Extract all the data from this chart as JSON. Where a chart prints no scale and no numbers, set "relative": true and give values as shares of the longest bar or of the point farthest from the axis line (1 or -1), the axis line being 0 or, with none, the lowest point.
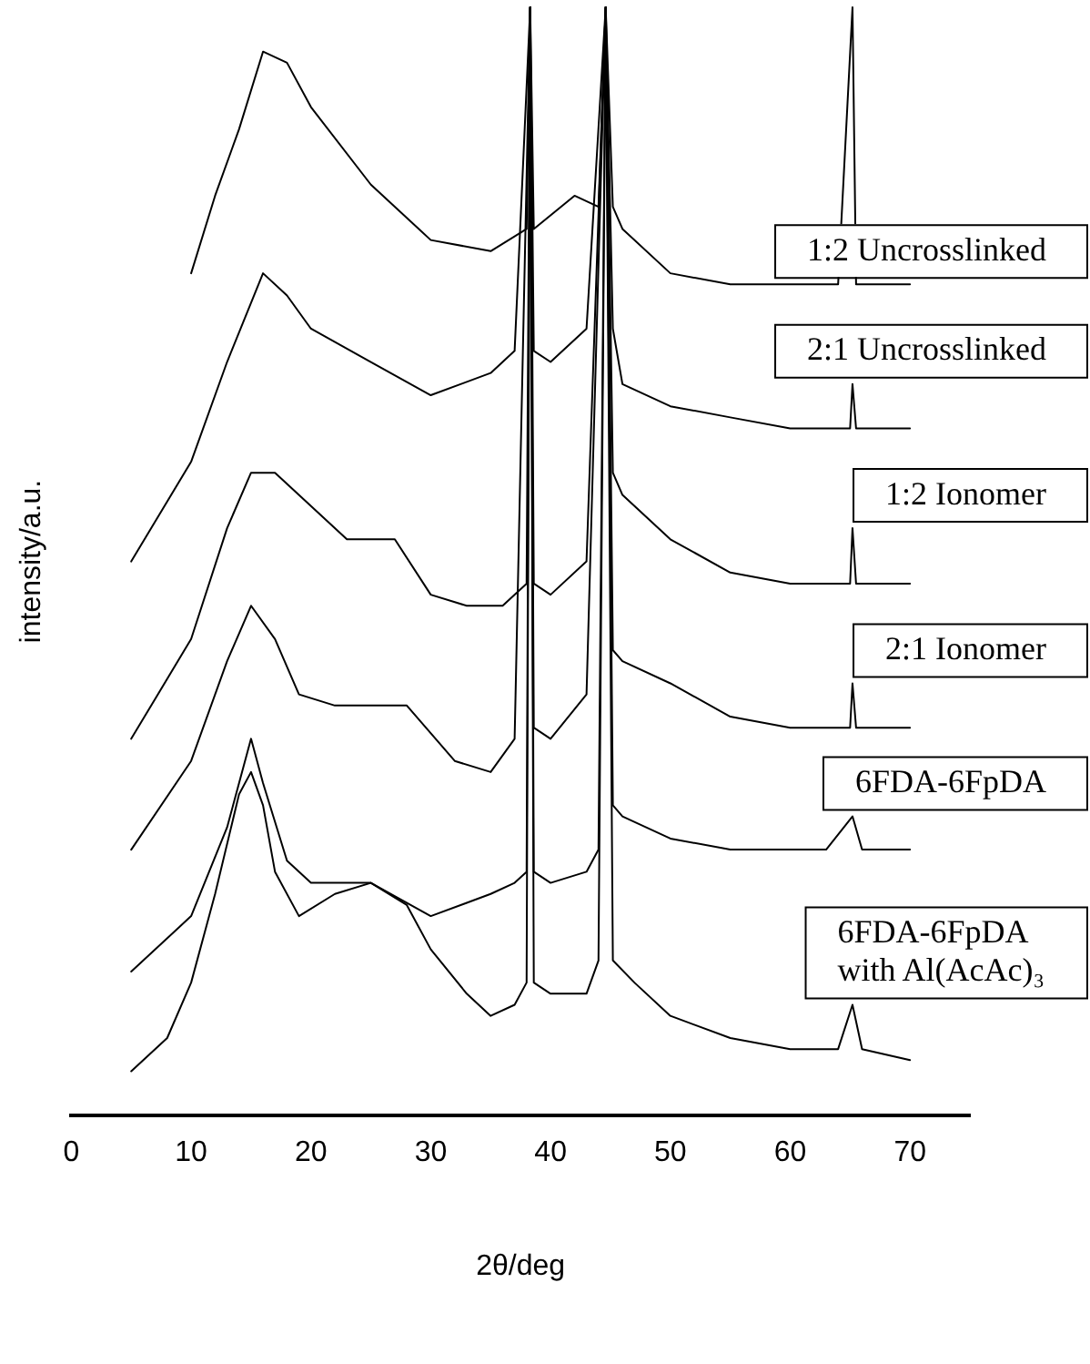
{
  "chart_data": {
    "type": "line",
    "relative": true,
    "xlabel": "2θ/deg",
    "ylabel": "intensity/a.u.",
    "xlim": [
      0,
      75
    ],
    "xticks": [
      0,
      10,
      20,
      30,
      40,
      50,
      60,
      70
    ],
    "grid": false,
    "legend": false,
    "marker": "none",
    "line_style": "solid",
    "tick_labels": "x",
    "series": [
      {
        "name": "1:2 Uncrosslinked",
        "color": "#000000",
        "x": [
          10,
          12,
          14,
          16,
          18,
          20,
          25,
          30,
          35,
          38,
          38.3,
          38.6,
          42,
          44,
          44.6,
          45.2,
          46,
          50,
          55,
          60,
          64,
          65.2,
          65.5,
          70
        ],
        "values": [
          0.76,
          0.83,
          0.89,
          0.96,
          0.95,
          0.91,
          0.84,
          0.79,
          0.78,
          0.8,
          1,
          0.8,
          0.83,
          0.82,
          1,
          0.82,
          0.8,
          0.76,
          0.75,
          0.75,
          0.75,
          1,
          0.75,
          0.75
        ]
      },
      {
        "name": "2:1 Uncrosslinked",
        "color": "#000000",
        "x": [
          5,
          10,
          13,
          16,
          18,
          20,
          25,
          30,
          35,
          37,
          38.3,
          38.6,
          40,
          43,
          44.6,
          45.2,
          46,
          50,
          55,
          60,
          65,
          65.2,
          65.5,
          70
        ],
        "values": [
          0.5,
          0.59,
          0.68,
          0.76,
          0.74,
          0.71,
          0.68,
          0.65,
          0.67,
          0.69,
          1,
          0.69,
          0.68,
          0.71,
          1,
          0.71,
          0.66,
          0.64,
          0.63,
          0.62,
          0.62,
          0.66,
          0.62,
          0.62
        ]
      },
      {
        "name": "1:2 Ionomer",
        "color": "#000000",
        "x": [
          5,
          10,
          13,
          15,
          17,
          20,
          23,
          27,
          30,
          33,
          36,
          38,
          38.3,
          38.6,
          40,
          43,
          44.6,
          45.2,
          46,
          50,
          55,
          60,
          65,
          65.2,
          65.5,
          70
        ],
        "values": [
          0.34,
          0.43,
          0.53,
          0.58,
          0.58,
          0.55,
          0.52,
          0.52,
          0.47,
          0.46,
          0.46,
          0.48,
          1,
          0.48,
          0.47,
          0.5,
          1,
          0.58,
          0.56,
          0.52,
          0.49,
          0.48,
          0.48,
          0.53,
          0.48,
          0.48
        ]
      },
      {
        "name": "2:1 Ionomer",
        "color": "#000000",
        "x": [
          5,
          10,
          13,
          15,
          17,
          19,
          22,
          26,
          28,
          32,
          35,
          37,
          38.3,
          38.6,
          40,
          43,
          44.6,
          45.2,
          46,
          50,
          55,
          60,
          65,
          65.2,
          65.5,
          70
        ],
        "values": [
          0.24,
          0.32,
          0.41,
          0.46,
          0.43,
          0.38,
          0.37,
          0.37,
          0.37,
          0.32,
          0.31,
          0.34,
          1,
          0.35,
          0.34,
          0.38,
          1,
          0.42,
          0.41,
          0.39,
          0.36,
          0.35,
          0.35,
          0.39,
          0.35,
          0.35
        ]
      },
      {
        "name": "6FDA-6FpDA",
        "color": "#000000",
        "x": [
          5,
          10,
          13,
          15,
          16,
          18,
          20,
          25,
          30,
          35,
          37,
          38,
          38.3,
          38.6,
          40,
          43,
          44,
          44.6,
          45.2,
          46,
          50,
          55,
          60,
          63,
          65.2,
          66,
          70
        ],
        "values": [
          0.13,
          0.18,
          0.26,
          0.34,
          0.3,
          0.23,
          0.21,
          0.21,
          0.18,
          0.2,
          0.21,
          0.22,
          1,
          0.22,
          0.21,
          0.22,
          0.24,
          1,
          0.28,
          0.27,
          0.25,
          0.24,
          0.24,
          0.24,
          0.27,
          0.24,
          0.24
        ]
      },
      {
        "name": "6FDA-6FpDA\nwith Al(AcAc)₃",
        "color": "#000000",
        "x": [
          5,
          8,
          10,
          12,
          14,
          15,
          16,
          17,
          19,
          22,
          25,
          28,
          30,
          33,
          35,
          37,
          38,
          38.3,
          38.6,
          40,
          43,
          44,
          44.6,
          45.2,
          47,
          50,
          55,
          60,
          64,
          65.2,
          66,
          70
        ],
        "values": [
          0.04,
          0.07,
          0.12,
          0.2,
          0.29,
          0.31,
          0.28,
          0.22,
          0.18,
          0.2,
          0.21,
          0.19,
          0.15,
          0.11,
          0.09,
          0.1,
          0.12,
          1,
          0.12,
          0.11,
          0.11,
          0.14,
          1,
          0.14,
          0.12,
          0.09,
          0.07,
          0.06,
          0.06,
          0.1,
          0.06,
          0.05
        ]
      }
    ]
  }
}
